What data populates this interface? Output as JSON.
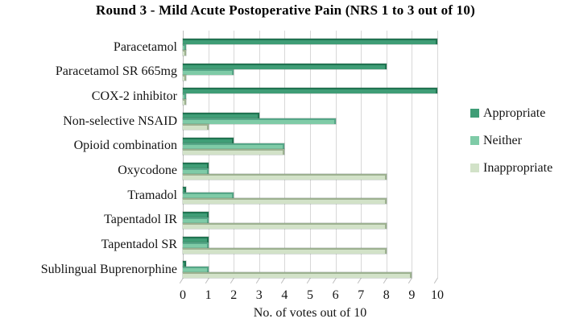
{
  "title": "Round 3 - Mild Acute Postoperative Pain (NRS 1 to 3 out of 10)",
  "chart_data": {
    "type": "bar",
    "orientation": "horizontal",
    "title": "Round 3 - Mild Acute Postoperative Pain (NRS 1 to 3 out of 10)",
    "xlabel": "No. of votes out of 10",
    "xlim": [
      0,
      10
    ],
    "x_ticks": [
      "0",
      "1",
      "2",
      "3",
      "4",
      "5",
      "6",
      "7",
      "8",
      "9",
      "10"
    ],
    "grid": true,
    "legend_position": "right",
    "categories": [
      "Paracetamol",
      "Paracetamol SR 665mg",
      "COX-2 inhibitor",
      "Non-selective NSAID",
      "Opioid combination",
      "Oxycodone",
      "Tramadol",
      "Tapentadol IR",
      "Tapentadol SR",
      "Sublingual Buprenorphine"
    ],
    "series": [
      {
        "name": "Appropriate",
        "color": "#3F9D76",
        "edge_color": "#1F7350",
        "values": [
          10,
          8,
          10,
          3,
          2,
          1,
          0,
          1,
          1,
          0
        ]
      },
      {
        "name": "Neither",
        "color": "#7FCBA7",
        "edge_color": "#55A687",
        "values": [
          0,
          2,
          0,
          6,
          4,
          1,
          2,
          1,
          1,
          1
        ]
      },
      {
        "name": "Inappropriate",
        "color": "#D2E2C8",
        "edge_color": "#9DB190",
        "values": [
          0,
          0,
          0,
          1,
          4,
          8,
          8,
          8,
          8,
          9
        ]
      }
    ],
    "colors": {
      "gridline": "#d8d8d8",
      "axis": "#bdbdbd",
      "text": "#141414"
    }
  }
}
